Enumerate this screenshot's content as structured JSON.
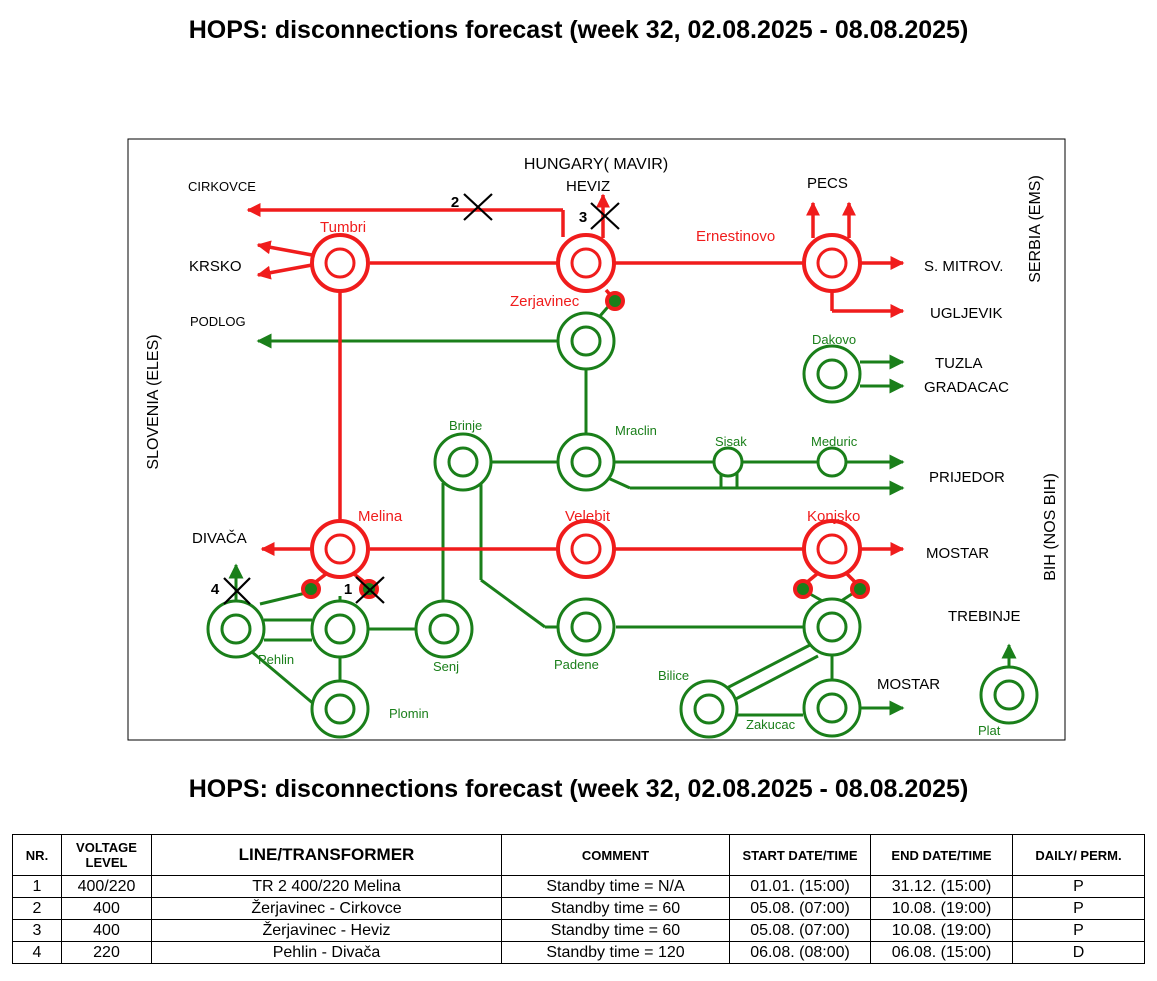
{
  "title": "HOPS: disconnections forecast (week 32, 02.08.2025 - 08.08.2025)",
  "colors": {
    "red": "#f01c1c",
    "green": "#1a7f1a",
    "black": "#000000"
  },
  "diagram": {
    "borders": {
      "hungary": "HUNGARY( MAVIR)",
      "slovenia": "SLOVENIA (ELES)",
      "serbia": "SERBIA (EMS)",
      "bih": "BIH (NOS BIH)"
    },
    "external": {
      "cirkovce": "CIRKOVCE",
      "krsko": "KRSKO",
      "podlog": "PODLOG",
      "heviz": "HEVIZ",
      "pecs": "PECS",
      "s_mitrov": "S. MITROV.",
      "ugljevik": "UGLJEVIK",
      "tuzla": "TUZLA",
      "gradacac": "GRADACAC",
      "prijedor": "PRIJEDOR",
      "divaca": "DIVAČA",
      "mostar1": "MOSTAR",
      "trebinje": "TREBINJE",
      "mostar2": "MOSTAR"
    },
    "stations400": {
      "tumbri": "Tumbri",
      "zerjavinec": "Zerjavinec",
      "ernestinovo": "Ernestinovo",
      "melina": "Melina",
      "velebit": "Velebit",
      "konjsko": "Konjsko"
    },
    "stations220": {
      "dakovo": "Dakovo",
      "brinje": "Brinje",
      "mraclin": "Mraclin",
      "sisak": "Sisak",
      "meduric": "Meduric",
      "pehlin": "Pehlin",
      "senj": "Senj",
      "plomin": "Plomin",
      "padene": "Padene",
      "bilice": "Bilice",
      "zakucac": "Zakucac",
      "plat": "Plat"
    },
    "disconnection_marks": [
      "1",
      "2",
      "3",
      "4"
    ]
  },
  "table": {
    "headers": [
      "NR.",
      "VOLTAGE LEVEL",
      "LINE/TRANSFORMER",
      "COMMENT",
      "START DATE/TIME",
      "END DATE/TIME",
      "DAILY/ PERM."
    ],
    "rows": [
      [
        "1",
        "400/220",
        "TR 2 400/220 Melina",
        "Standby time = N/A",
        "01.01. (15:00)",
        "31.12. (15:00)",
        "P"
      ],
      [
        "2",
        "400",
        "Žerjavinec - Cirkovce",
        "Standby time = 60",
        "05.08. (07:00)",
        "10.08. (19:00)",
        "P"
      ],
      [
        "3",
        "400",
        "Žerjavinec - Heviz",
        "Standby time = 60",
        "05.08. (07:00)",
        "10.08. (19:00)",
        "P"
      ],
      [
        "4",
        "220",
        "Pehlin - Divača",
        "Standby time = 120",
        "06.08. (08:00)",
        "06.08. (15:00)",
        "D"
      ]
    ]
  }
}
